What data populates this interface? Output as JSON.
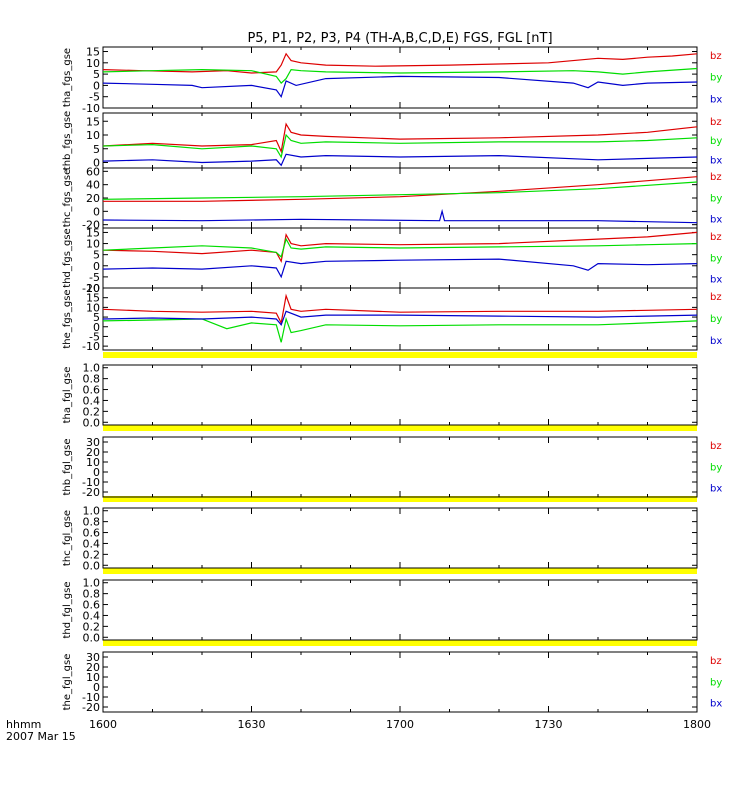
{
  "title": "P5, P1, P2, P3, P4 (TH-A,B,C,D,E) FGS, FGL [nT]",
  "x_axis": {
    "label_line1": "hhmm",
    "label_line2": "2007 Mar 15",
    "range": [
      "16:00",
      "18:00"
    ],
    "ticks": [
      "1600",
      "1630",
      "1700",
      "1730",
      "1800"
    ]
  },
  "colors": {
    "bz": "#dd0000",
    "by": "#00dd00",
    "bx": "#0000cc",
    "bar": "#ffff00"
  },
  "chart_data": [
    {
      "type": "line",
      "ylabel": "tha_fgs_gse",
      "ylim": [
        -10,
        17
      ],
      "yticks": [
        "15",
        "10",
        "5",
        "0",
        "-5",
        "-10"
      ],
      "legend": [
        "bz",
        "by",
        "bx"
      ],
      "legend_placement": "right",
      "series": [
        {
          "name": "bz",
          "times": [
            0,
            8,
            18,
            25,
            30,
            35,
            36,
            37,
            38,
            40,
            45,
            55,
            70,
            90,
            100,
            105,
            110,
            115,
            120
          ],
          "values": [
            7,
            6.5,
            6,
            6.5,
            5.5,
            6,
            9,
            14,
            11,
            10,
            9,
            8.5,
            9,
            10,
            12,
            11.5,
            12.5,
            13,
            14
          ]
        },
        {
          "name": "by",
          "times": [
            0,
            10,
            20,
            30,
            35,
            36,
            37,
            38,
            40,
            45,
            60,
            80,
            95,
            100,
            105,
            110,
            120
          ],
          "values": [
            6,
            6.5,
            7,
            6.5,
            4,
            1,
            3,
            7,
            6.5,
            6,
            5.5,
            6,
            6.5,
            6,
            5,
            6,
            7.5
          ]
        },
        {
          "name": "bx",
          "times": [
            0,
            10,
            18,
            20,
            30,
            35,
            36,
            37,
            39,
            45,
            60,
            80,
            95,
            98,
            100,
            105,
            110,
            120
          ],
          "values": [
            1,
            0.5,
            0,
            -1,
            0,
            -2,
            -5,
            2,
            0,
            3,
            4,
            3.5,
            1,
            -1,
            1.5,
            0,
            1,
            1.5
          ]
        }
      ]
    },
    {
      "type": "line",
      "ylabel": "thb_fgs_gse",
      "ylim": [
        -2,
        18
      ],
      "yticks": [
        "15",
        "10",
        "5",
        "0"
      ],
      "legend": [
        "bz",
        "by",
        "bx"
      ],
      "legend_placement": "right",
      "series": [
        {
          "name": "bz",
          "times": [
            0,
            10,
            20,
            30,
            35,
            36,
            37,
            38,
            40,
            45,
            60,
            80,
            100,
            110,
            120
          ],
          "values": [
            6,
            7,
            6,
            6.5,
            8,
            4,
            14,
            11,
            10,
            9.5,
            8.5,
            9,
            10,
            11,
            13
          ]
        },
        {
          "name": "by",
          "times": [
            0,
            10,
            20,
            30,
            35,
            36,
            37,
            38,
            40,
            45,
            60,
            80,
            100,
            110,
            120
          ],
          "values": [
            6,
            6.5,
            5,
            6,
            5,
            2,
            10,
            8,
            7,
            7.5,
            7,
            7.5,
            7.5,
            8,
            9
          ]
        },
        {
          "name": "bx",
          "times": [
            0,
            10,
            20,
            30,
            35,
            36,
            37,
            40,
            45,
            60,
            80,
            100,
            110,
            120
          ],
          "values": [
            0.5,
            1,
            0,
            0.5,
            1,
            -1,
            3,
            2,
            2.5,
            2,
            2.5,
            1,
            1.5,
            2
          ]
        }
      ]
    },
    {
      "type": "line",
      "ylabel": "thc_fgs_gse",
      "ylim": [
        -25,
        65
      ],
      "yticks": [
        "60",
        "40",
        "20",
        "0",
        "-20"
      ],
      "legend": [
        "bz",
        "by",
        "bx"
      ],
      "legend_placement": "right",
      "series": [
        {
          "name": "bz",
          "times": [
            0,
            20,
            40,
            60,
            80,
            100,
            120
          ],
          "values": [
            15,
            15,
            18,
            22,
            30,
            40,
            52
          ]
        },
        {
          "name": "by",
          "times": [
            0,
            20,
            40,
            60,
            80,
            100,
            120
          ],
          "values": [
            18,
            20,
            22,
            25,
            28,
            34,
            44
          ]
        },
        {
          "name": "bx",
          "times": [
            0,
            20,
            40,
            68,
            68.5,
            69,
            80,
            100,
            120
          ],
          "values": [
            -13,
            -14,
            -12,
            -14,
            0,
            -14,
            -14,
            -14,
            -17
          ]
        }
      ]
    },
    {
      "type": "line",
      "ylabel": "thd_fgs_gse",
      "ylim": [
        -10,
        17
      ],
      "yticks": [
        "15",
        "10",
        "5",
        "0",
        "-5",
        "-10"
      ],
      "legend": [
        "bz",
        "by",
        "bx"
      ],
      "legend_placement": "right",
      "series": [
        {
          "name": "bz",
          "times": [
            0,
            10,
            20,
            30,
            35,
            36,
            37,
            38,
            40,
            45,
            60,
            80,
            100,
            110,
            120
          ],
          "values": [
            7,
            6.5,
            5.5,
            7,
            6,
            2,
            14,
            10,
            9,
            10,
            9.5,
            10,
            12,
            13,
            15
          ]
        },
        {
          "name": "by",
          "times": [
            0,
            10,
            20,
            30,
            35,
            36,
            37,
            38,
            40,
            45,
            60,
            80,
            100,
            110,
            120
          ],
          "values": [
            7,
            8,
            9,
            8,
            6,
            4,
            12,
            8,
            7.5,
            8.5,
            8,
            8.5,
            9,
            9.5,
            10
          ]
        },
        {
          "name": "bx",
          "times": [
            0,
            10,
            20,
            30,
            35,
            36,
            37,
            40,
            45,
            60,
            80,
            95,
            98,
            100,
            110,
            120
          ],
          "values": [
            -1.5,
            -1,
            -1.5,
            0,
            -1,
            -5,
            2,
            1,
            2,
            2.5,
            3,
            0,
            -2,
            1,
            0.5,
            1
          ]
        }
      ]
    },
    {
      "type": "line",
      "ylabel": "the_fgs_gse",
      "ylim": [
        -12,
        20
      ],
      "yticks": [
        "20",
        "15",
        "10",
        "5",
        "0",
        "-5",
        "-10"
      ],
      "legend": [
        "bz",
        "by",
        "bx"
      ],
      "legend_placement": "right",
      "series": [
        {
          "name": "bz",
          "times": [
            0,
            10,
            20,
            30,
            35,
            36,
            37,
            38,
            40,
            45,
            60,
            80,
            100,
            110,
            120
          ],
          "values": [
            9,
            8,
            7.5,
            8,
            7,
            2,
            16,
            9,
            8,
            9,
            7.5,
            8,
            8,
            8.5,
            9
          ]
        },
        {
          "name": "by",
          "times": [
            0,
            10,
            20,
            25,
            30,
            35,
            36,
            37,
            38,
            40,
            45,
            60,
            80,
            100,
            110,
            120
          ],
          "values": [
            3,
            3.5,
            4,
            -1,
            2,
            1,
            -8,
            4,
            -3,
            -2,
            1,
            0.5,
            1,
            1,
            2,
            3
          ]
        },
        {
          "name": "bx",
          "times": [
            0,
            10,
            20,
            30,
            35,
            36,
            37,
            40,
            45,
            60,
            80,
            100,
            110,
            120
          ],
          "values": [
            4,
            4.5,
            4,
            5,
            4,
            1,
            8,
            5,
            6,
            6,
            5.5,
            5,
            5.5,
            6
          ]
        }
      ]
    },
    {
      "type": "line",
      "ylabel": "tha_fgl_gse",
      "ylim": [
        -0.05,
        1.05
      ],
      "yticks": [
        "1.0",
        "0.8",
        "0.6",
        "0.4",
        "0.2",
        "0.0"
      ],
      "legend": [],
      "series": []
    },
    {
      "type": "line",
      "ylabel": "thb_fgl_gse",
      "ylim": [
        -25,
        35
      ],
      "yticks": [
        "30",
        "20",
        "10",
        "0",
        "-10",
        "-20"
      ],
      "legend": [
        "bz",
        "by",
        "bx"
      ],
      "legend_placement": "right",
      "series": []
    },
    {
      "type": "line",
      "ylabel": "thc_fgl_gse",
      "ylim": [
        -0.05,
        1.05
      ],
      "yticks": [
        "1.0",
        "0.8",
        "0.6",
        "0.4",
        "0.2",
        "0.0"
      ],
      "legend": [],
      "series": []
    },
    {
      "type": "line",
      "ylabel": "thd_fgl_gse",
      "ylim": [
        -0.05,
        1.05
      ],
      "yticks": [
        "1.0",
        "0.8",
        "0.6",
        "0.4",
        "0.2",
        "0.0"
      ],
      "legend": [],
      "series": []
    },
    {
      "type": "line",
      "ylabel": "the_fgl_gse",
      "ylim": [
        -25,
        35
      ],
      "yticks": [
        "30",
        "20",
        "10",
        "0",
        "-10",
        "-20"
      ],
      "legend": [
        "bz",
        "by",
        "bx"
      ],
      "legend_placement": "right",
      "series": []
    }
  ]
}
